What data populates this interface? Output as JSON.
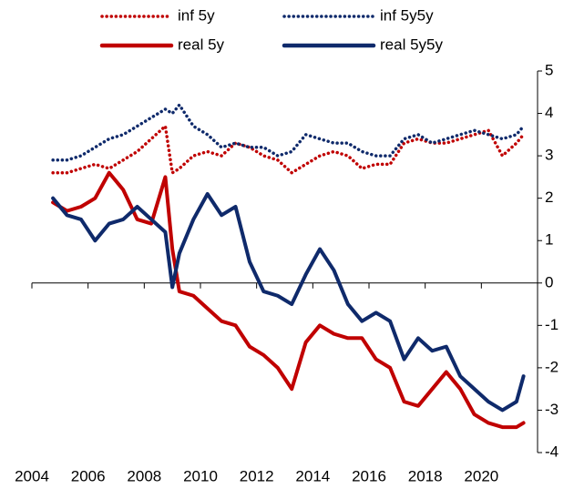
{
  "chart_data": {
    "type": "line",
    "x": [
      2004.75,
      2005.25,
      2005.75,
      2006.25,
      2006.75,
      2007.25,
      2007.75,
      2008.25,
      2008.75,
      2009.0,
      2009.25,
      2009.75,
      2010.25,
      2010.75,
      2011.25,
      2011.75,
      2012.25,
      2012.75,
      2013.25,
      2013.75,
      2014.25,
      2014.75,
      2015.25,
      2015.75,
      2016.25,
      2016.75,
      2017.25,
      2017.75,
      2018.25,
      2018.75,
      2019.25,
      2019.75,
      2020.25,
      2020.75,
      2021.25,
      2021.5
    ],
    "series": [
      {
        "name": "inf 5y",
        "color": "#c00000",
        "style": "dotted",
        "values": [
          2.6,
          2.6,
          2.7,
          2.8,
          2.7,
          2.9,
          3.1,
          3.4,
          3.7,
          2.6,
          2.7,
          3.0,
          3.1,
          3.0,
          3.3,
          3.2,
          3.0,
          2.9,
          2.6,
          2.8,
          3.0,
          3.1,
          3.0,
          2.7,
          2.8,
          2.8,
          3.3,
          3.4,
          3.3,
          3.3,
          3.4,
          3.5,
          3.6,
          3.0,
          3.3,
          3.5
        ]
      },
      {
        "name": "inf 5y5y",
        "color": "#0f2a6b",
        "style": "dotted",
        "values": [
          2.9,
          2.9,
          3.0,
          3.2,
          3.4,
          3.5,
          3.7,
          3.9,
          4.1,
          4.0,
          4.2,
          3.7,
          3.5,
          3.2,
          3.3,
          3.2,
          3.2,
          3.0,
          3.1,
          3.5,
          3.4,
          3.3,
          3.3,
          3.1,
          3.0,
          3.0,
          3.4,
          3.5,
          3.3,
          3.4,
          3.5,
          3.6,
          3.5,
          3.4,
          3.5,
          3.7
        ]
      },
      {
        "name": "real 5y",
        "color": "#c00000",
        "style": "solid",
        "values": [
          1.9,
          1.7,
          1.8,
          2.0,
          2.6,
          2.2,
          1.5,
          1.4,
          2.5,
          0.8,
          -0.2,
          -0.3,
          -0.6,
          -0.9,
          -1.0,
          -1.5,
          -1.7,
          -2.0,
          -2.5,
          -1.4,
          -1.0,
          -1.2,
          -1.3,
          -1.3,
          -1.8,
          -2.0,
          -2.8,
          -2.9,
          -2.5,
          -2.1,
          -2.5,
          -3.1,
          -3.3,
          -3.4,
          -3.4,
          -3.3
        ]
      },
      {
        "name": "real 5y5y",
        "color": "#0f2a6b",
        "style": "solid",
        "values": [
          2.0,
          1.6,
          1.5,
          1.0,
          1.4,
          1.5,
          1.8,
          1.5,
          1.2,
          -0.1,
          0.7,
          1.5,
          2.1,
          1.6,
          1.8,
          0.5,
          -0.2,
          -0.3,
          -0.5,
          0.2,
          0.8,
          0.3,
          -0.5,
          -0.9,
          -0.7,
          -0.9,
          -1.8,
          -1.3,
          -1.6,
          -1.5,
          -2.2,
          -2.5,
          -2.8,
          -3.0,
          -2.8,
          -2.2
        ]
      }
    ],
    "xlim": [
      2004,
      2022
    ],
    "xticks": [
      2004,
      2006,
      2008,
      2010,
      2012,
      2014,
      2016,
      2018,
      2020
    ],
    "ylim": [
      -4,
      5
    ],
    "yticks": [
      -4,
      -3,
      -2,
      -1,
      0,
      1,
      2,
      3,
      4,
      5
    ],
    "legend": "top"
  }
}
